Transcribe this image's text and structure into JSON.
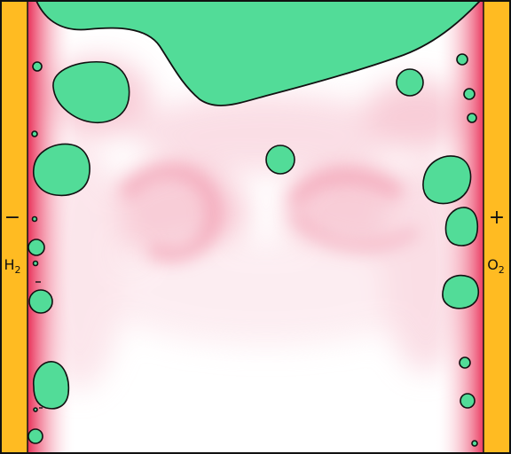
{
  "colors": {
    "electrode": "#FFBB22",
    "gas": "#52DC98",
    "concentration": "#E8244F",
    "background": "#FFFFFF",
    "outline": "#111111"
  },
  "left_electrode": {
    "sign": "−",
    "gas_main": "H",
    "gas_sub": "2"
  },
  "right_electrode": {
    "sign": "+",
    "gas_main": "O",
    "gas_sub": "2"
  }
}
